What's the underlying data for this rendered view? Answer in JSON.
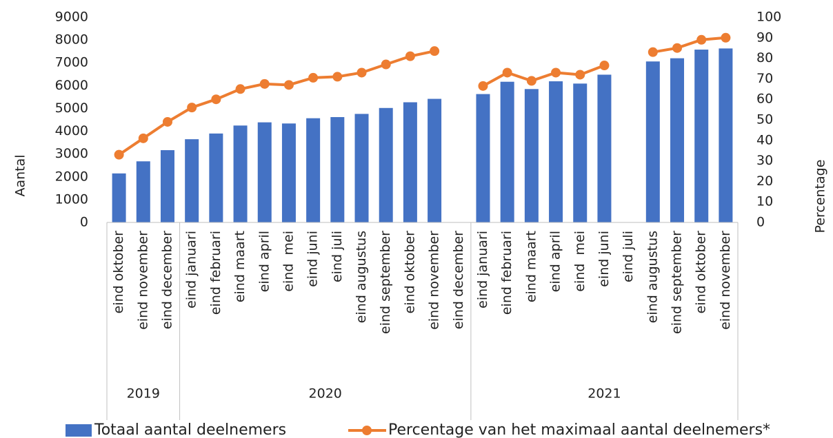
{
  "chart_data": {
    "type": "bar-line",
    "categories": [
      "eind oktober",
      "eind november",
      "eind december",
      "eind januari",
      "eind februari",
      "eind maart",
      "eind april",
      "eind  mei",
      "eind juni",
      "eind juli",
      "eind augustus",
      "eind september",
      "eind oktober",
      "eind november",
      "eind december",
      "eind januari",
      "eind februari",
      "eind maart",
      "eind april",
      "eind  mei",
      "eind juni",
      "eind juli",
      "eind augustus",
      "eind september",
      "eind oktober",
      "eind november"
    ],
    "year_groups": [
      {
        "label": "2019",
        "size": 3
      },
      {
        "label": "2020",
        "size": 12
      },
      {
        "label": "2021",
        "size": 11
      }
    ],
    "series": [
      {
        "name": "Totaal aantal deelnemers",
        "kind": "bar",
        "color": "#4472c4",
        "values": [
          2150,
          2680,
          3170,
          3650,
          3900,
          4250,
          4390,
          4340,
          4570,
          4620,
          4760,
          5020,
          5270,
          5420,
          null,
          5630,
          6170,
          5850,
          6190,
          6090,
          6480,
          null,
          7060,
          7200,
          7580,
          7630
        ]
      },
      {
        "name": "Percentage van het maximaal aantal deelnemers*",
        "kind": "line",
        "axis": "y2",
        "color": "#ed7d31",
        "values": [
          33,
          41,
          49,
          56,
          60,
          65,
          67.5,
          67,
          70.5,
          71,
          73,
          77,
          81,
          83.5,
          null,
          66.5,
          73,
          69,
          73,
          72,
          76.5,
          null,
          83,
          85,
          89,
          90
        ]
      }
    ],
    "y_label": "Aantal",
    "y2_label": "Percentage",
    "ylim": [
      0,
      9000
    ],
    "yticks": [
      0,
      1000,
      2000,
      3000,
      4000,
      5000,
      6000,
      7000,
      8000,
      9000
    ],
    "y2lim": [
      0,
      100
    ],
    "y2ticks": [
      0,
      10,
      20,
      30,
      40,
      50,
      60,
      70,
      80,
      90,
      100
    ],
    "grid": false,
    "legend": "bottom"
  }
}
